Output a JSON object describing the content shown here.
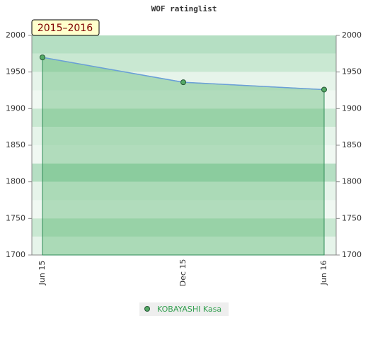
{
  "chart_data": {
    "type": "line",
    "title": "WOF ratinglist",
    "annotation": "2015–2016",
    "categories": [
      "Jun 15",
      "Dec 15",
      "Jun 16"
    ],
    "series": [
      {
        "name": "KOBAYASHI Kasa",
        "color": "#6a9fd8",
        "values": [
          1970,
          1936,
          1926
        ]
      }
    ],
    "ylim": [
      1700,
      2000
    ],
    "yticks": [
      1700,
      1750,
      1800,
      1850,
      1900,
      1950,
      2000
    ],
    "grid": true
  }
}
